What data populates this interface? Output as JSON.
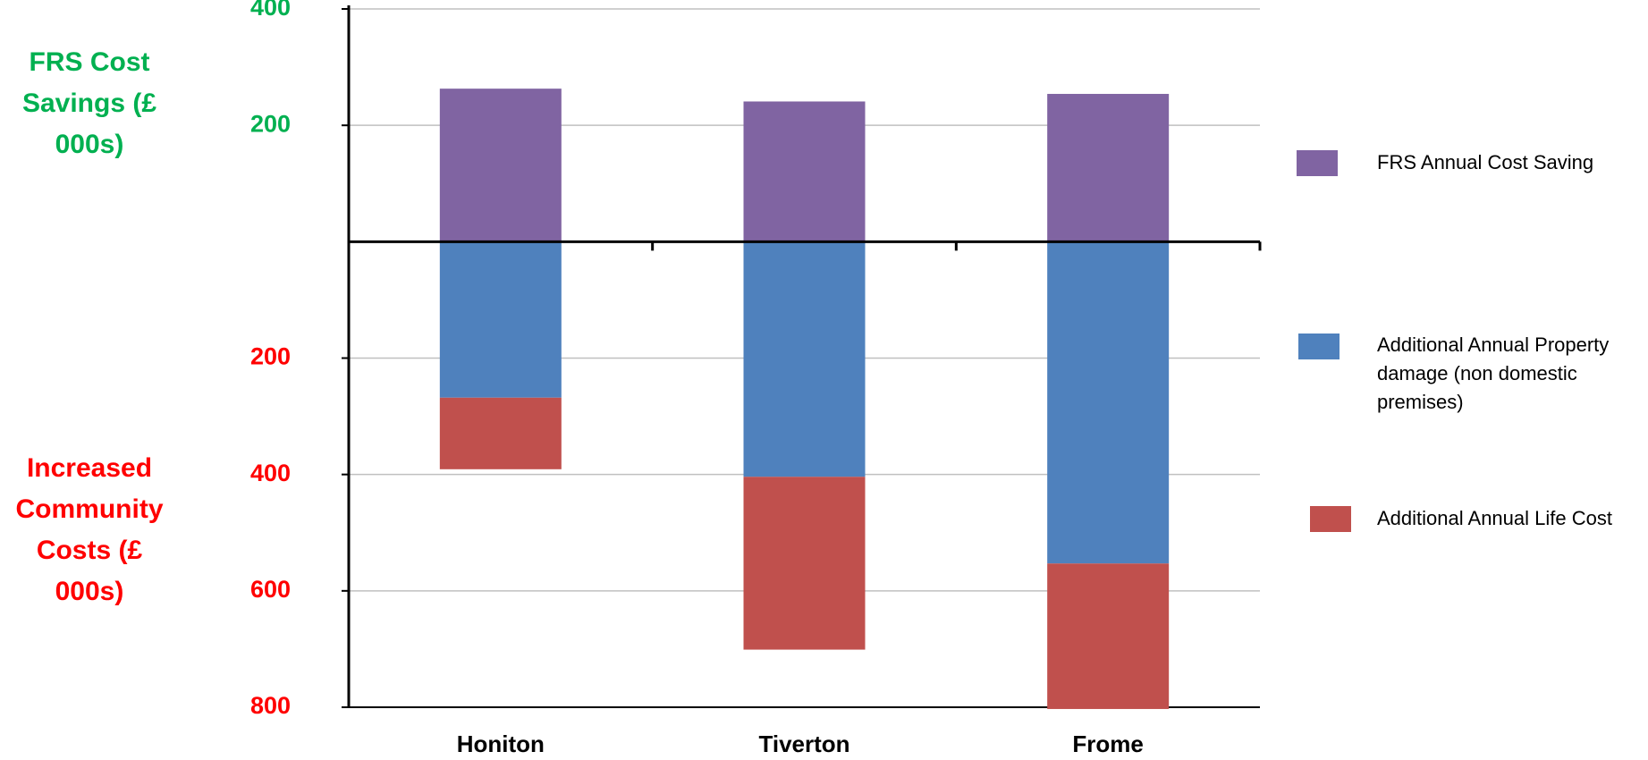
{
  "chart_data": {
    "type": "bar",
    "stacked": true,
    "categories": [
      "Honiton",
      "Tiverton",
      "Frome"
    ],
    "series": [
      {
        "name": "FRS Annual Cost Saving",
        "color": "#8064a2",
        "values": [
          263,
          241,
          254
        ]
      },
      {
        "name": "Additional Annual Property damage (non domestic premises)",
        "color": "#4f81bd",
        "values": [
          -268,
          -404,
          -553
        ]
      },
      {
        "name": "Additional Annual Life Cost",
        "color": "#c0504d",
        "values": [
          -123,
          -297,
          -250
        ]
      }
    ],
    "y_label_positive": "FRS Cost Savings (£ 000s)",
    "y_label_negative": "Increased Community Costs (£ 000s)",
    "positive_color": "#00b050",
    "negative_color": "#ff0000",
    "ylim": [
      -800,
      400
    ],
    "yticks": [
      400,
      200,
      {
        "value": -200,
        "label": "200"
      },
      {
        "value": -400,
        "label": "400"
      },
      {
        "value": -600,
        "label": "600"
      },
      {
        "value": -800,
        "label": "800"
      }
    ],
    "grid": true,
    "legend": "right"
  }
}
